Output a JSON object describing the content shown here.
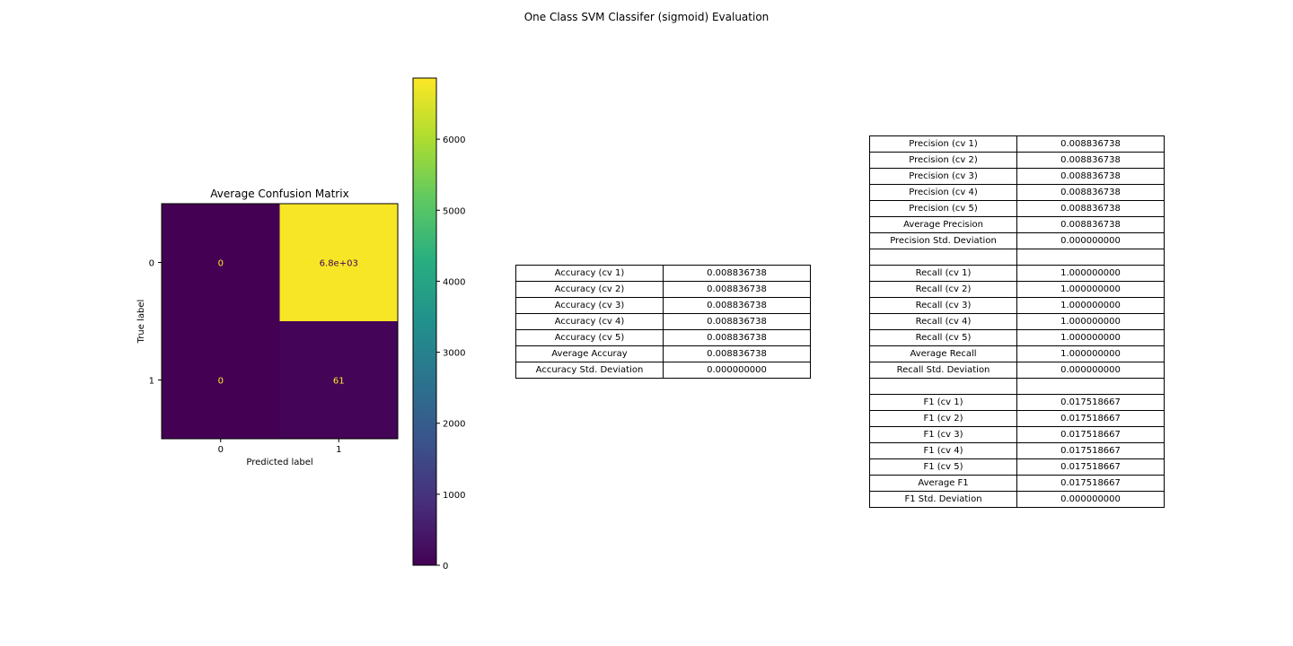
{
  "page": {
    "suptitle": "One Class SVM Classifer (sigmoid) Evaluation"
  },
  "chart_data": [
    {
      "type": "heatmap",
      "title": "Average Confusion Matrix",
      "xlabel": "Predicted label",
      "ylabel": "True label",
      "x_ticks": [
        "0",
        "1"
      ],
      "y_ticks": [
        "0",
        "1"
      ],
      "values": [
        [
          0,
          6800
        ],
        [
          0,
          61
        ]
      ],
      "cell_labels": [
        [
          "0",
          "6.8e+03"
        ],
        [
          "0",
          "61"
        ]
      ],
      "colormap": "viridis",
      "colorbar": {
        "min": 0,
        "max": 6861,
        "ticks": [
          0,
          1000,
          2000,
          3000,
          4000,
          5000,
          6000
        ]
      },
      "label_colors": {
        "on_dark": "#fde725",
        "on_light": "#440154"
      }
    },
    {
      "type": "table",
      "rows": [
        [
          "Accuracy (cv 1)",
          "0.008836738"
        ],
        [
          "Accuracy (cv 2)",
          "0.008836738"
        ],
        [
          "Accuracy (cv 3)",
          "0.008836738"
        ],
        [
          "Accuracy (cv 4)",
          "0.008836738"
        ],
        [
          "Accuracy (cv 5)",
          "0.008836738"
        ],
        [
          "Average Accuray",
          "0.008836738"
        ],
        [
          "Accuracy Std. Deviation",
          "0.000000000"
        ]
      ]
    },
    {
      "type": "table",
      "rows": [
        [
          "Precision (cv 1)",
          "0.008836738"
        ],
        [
          "Precision (cv 2)",
          "0.008836738"
        ],
        [
          "Precision (cv 3)",
          "0.008836738"
        ],
        [
          "Precision (cv 4)",
          "0.008836738"
        ],
        [
          "Precision (cv 5)",
          "0.008836738"
        ],
        [
          "Average Precision",
          "0.008836738"
        ],
        [
          "Precision Std. Deviation",
          "0.000000000"
        ],
        [
          "",
          ""
        ],
        [
          "Recall (cv 1)",
          "1.000000000"
        ],
        [
          "Recall (cv 2)",
          "1.000000000"
        ],
        [
          "Recall (cv 3)",
          "1.000000000"
        ],
        [
          "Recall (cv 4)",
          "1.000000000"
        ],
        [
          "Recall (cv 5)",
          "1.000000000"
        ],
        [
          "Average Recall",
          "1.000000000"
        ],
        [
          "Recall Std. Deviation",
          "0.000000000"
        ],
        [
          "",
          ""
        ],
        [
          "F1 (cv 1)",
          "0.017518667"
        ],
        [
          "F1 (cv 2)",
          "0.017518667"
        ],
        [
          "F1 (cv 3)",
          "0.017518667"
        ],
        [
          "F1 (cv 4)",
          "0.017518667"
        ],
        [
          "F1 (cv 5)",
          "0.017518667"
        ],
        [
          "Average F1",
          "0.017518667"
        ],
        [
          "F1 Std. Deviation",
          "0.000000000"
        ]
      ]
    }
  ]
}
